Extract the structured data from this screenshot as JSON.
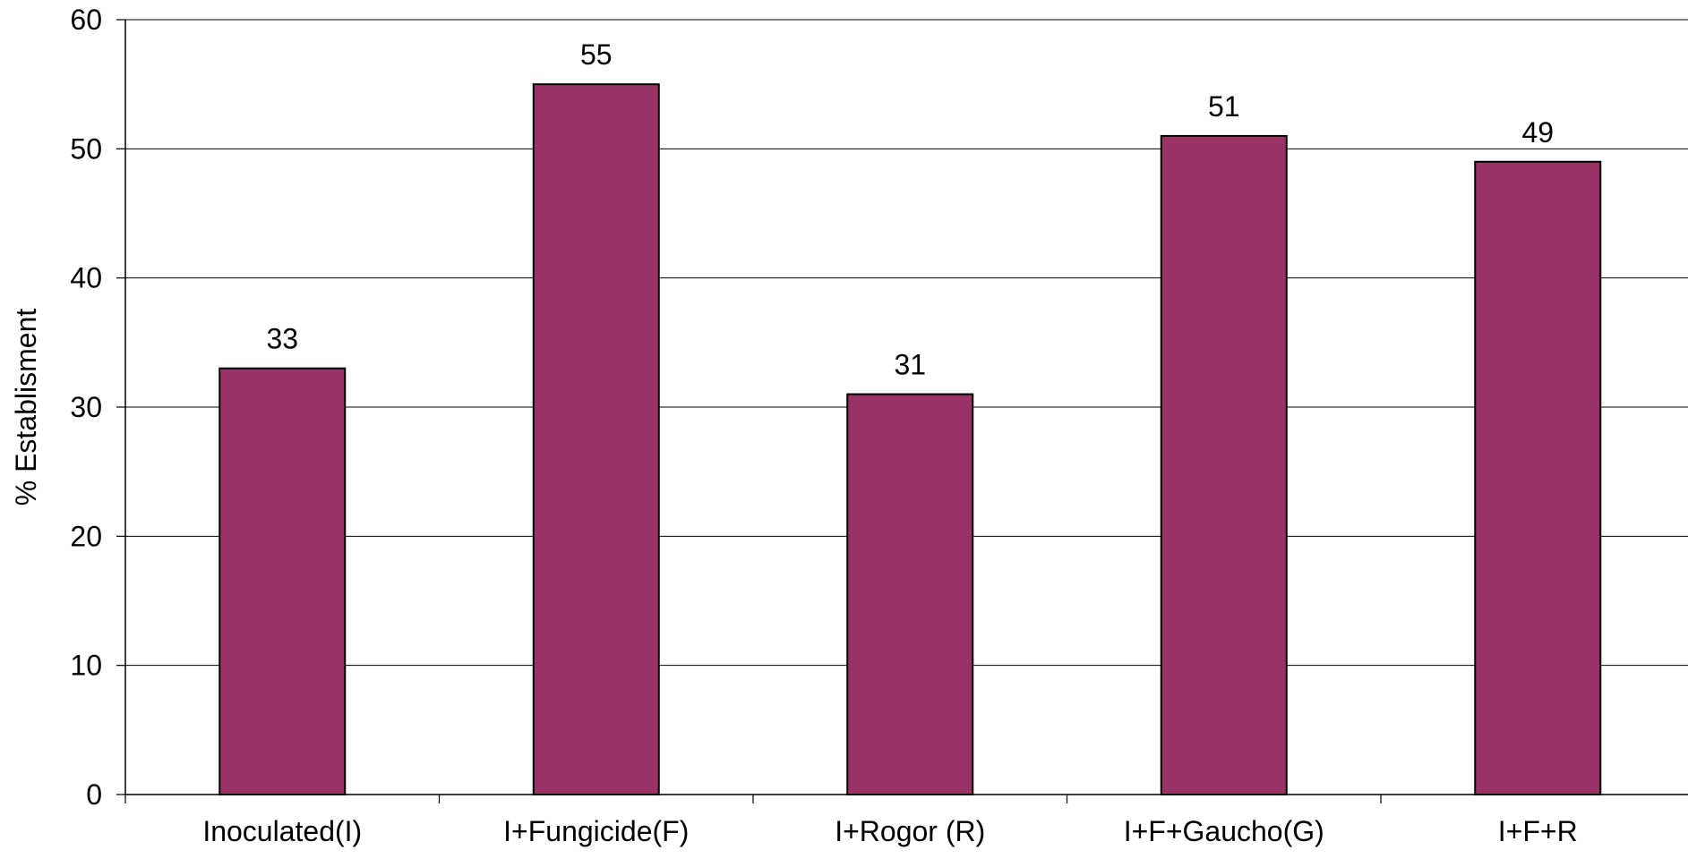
{
  "chart_data": {
    "type": "bar",
    "title": "",
    "xlabel": "",
    "ylabel": "% Establisment",
    "categories": [
      "Inoculated(I)",
      "I+Fungicide(F)",
      "I+Rogor (R)",
      "I+F+Gaucho(G)",
      "I+F+R"
    ],
    "values": [
      33,
      55,
      31,
      51,
      49
    ],
    "data_labels": [
      "33",
      "55",
      "31",
      "51",
      "49"
    ],
    "ylim": [
      0,
      60
    ],
    "yticks": [
      0,
      10,
      20,
      30,
      40,
      50,
      60
    ],
    "ytick_labels": [
      "0",
      "10",
      "20",
      "30",
      "40",
      "50",
      "60"
    ],
    "grid": true,
    "legend": "none",
    "colors": {
      "bar_fill": "#993366",
      "bar_stroke": "#000000",
      "grid": "#000000",
      "axis": "#000000"
    }
  }
}
